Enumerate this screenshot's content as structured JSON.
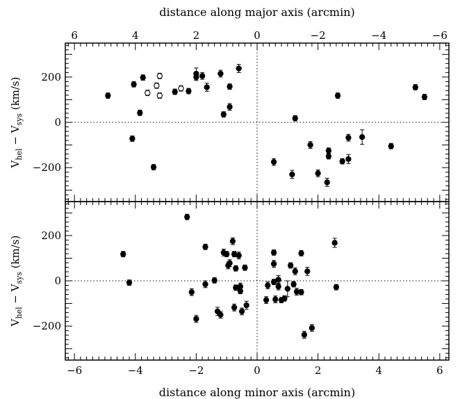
{
  "chart_data": [
    {
      "type": "scatter",
      "xlabel": "distance along major axis (arcmin)",
      "ylabel": "V_hel − V_sys (km/s)",
      "ylabel_parts": {
        "v": "V",
        "hel": "hel",
        "minus": " − ",
        "sys": "sys",
        "unit": " (km/s)"
      },
      "xlim": [
        6.3,
        -6.3
      ],
      "ylim": [
        -350,
        350
      ],
      "xticks": [
        6,
        4,
        2,
        0,
        -2,
        -4,
        -6
      ],
      "xtick_labels": [
        "6",
        "4",
        "2",
        "0",
        "−2",
        "−4",
        "−6"
      ],
      "yticks": [
        -200,
        0,
        200
      ],
      "ytick_labels": [
        "−200",
        "0",
        "200"
      ],
      "reference_lines": {
        "x": 0,
        "y": 0,
        "style": "dotted"
      },
      "series": [
        {
          "marker": "filled-circle",
          "points": [
            {
              "x": 4.9,
              "y": 118,
              "err": 12
            },
            {
              "x": 4.05,
              "y": 168,
              "err": 12
            },
            {
              "x": 3.85,
              "y": 42,
              "err": 12
            },
            {
              "x": 3.75,
              "y": 198,
              "err": 12
            },
            {
              "x": 4.1,
              "y": -72,
              "err": 12
            },
            {
              "x": 3.4,
              "y": -198,
              "err": 12
            },
            {
              "x": 2.7,
              "y": 135,
              "err": 12
            },
            {
              "x": 2.25,
              "y": 138,
              "err": 12
            },
            {
              "x": 2.0,
              "y": 215,
              "err": 25
            },
            {
              "x": 2.0,
              "y": 200,
              "err": 15
            },
            {
              "x": 1.8,
              "y": 205,
              "err": 15
            },
            {
              "x": 1.65,
              "y": 155,
              "err": 18
            },
            {
              "x": 1.2,
              "y": 215,
              "err": 15
            },
            {
              "x": 1.1,
              "y": 35,
              "err": 12
            },
            {
              "x": 0.9,
              "y": 158,
              "err": 12
            },
            {
              "x": 0.9,
              "y": 68,
              "err": 15
            },
            {
              "x": 0.6,
              "y": 238,
              "err": 18
            },
            {
              "x": -0.55,
              "y": -175,
              "err": 15
            },
            {
              "x": -1.15,
              "y": -230,
              "err": 18
            },
            {
              "x": -1.25,
              "y": 18,
              "err": 12
            },
            {
              "x": -1.75,
              "y": -100,
              "err": 15
            },
            {
              "x": -2.0,
              "y": -225,
              "err": 15
            },
            {
              "x": -2.3,
              "y": -265,
              "err": 18
            },
            {
              "x": -2.35,
              "y": -125,
              "err": 12
            },
            {
              "x": -2.35,
              "y": -150,
              "err": 12
            },
            {
              "x": -2.65,
              "y": 118,
              "err": 12
            },
            {
              "x": -2.8,
              "y": -172,
              "err": 12
            },
            {
              "x": -3.0,
              "y": -162,
              "err": 20
            },
            {
              "x": -3.0,
              "y": -68,
              "err": 15
            },
            {
              "x": -3.45,
              "y": -65,
              "err": 32
            },
            {
              "x": -4.4,
              "y": -105,
              "err": 12
            },
            {
              "x": -5.2,
              "y": 155,
              "err": 12
            },
            {
              "x": -5.5,
              "y": 112,
              "err": 12
            }
          ]
        },
        {
          "marker": "open-circle",
          "points": [
            {
              "x": 3.6,
              "y": 130,
              "err": 12
            },
            {
              "x": 3.3,
              "y": 162,
              "err": 12
            },
            {
              "x": 3.2,
              "y": 205,
              "err": 12
            },
            {
              "x": 3.2,
              "y": 118,
              "err": 12
            },
            {
              "x": 2.5,
              "y": 150,
              "err": 12
            }
          ]
        }
      ]
    },
    {
      "type": "scatter",
      "xlabel": "distance along minor axis (arcmin)",
      "ylabel": "V_hel − V_sys (km/s)",
      "ylabel_parts": {
        "v": "V",
        "hel": "hel",
        "minus": " − ",
        "sys": "sys",
        "unit": " (km/s)"
      },
      "xlim": [
        -6.3,
        6.3
      ],
      "ylim": [
        -350,
        350
      ],
      "xticks": [
        -6,
        -4,
        -2,
        0,
        2,
        4,
        6
      ],
      "xtick_labels": [
        "−6",
        "−4",
        "−2",
        "0",
        "2",
        "4",
        "6"
      ],
      "yticks": [
        -200,
        0,
        200
      ],
      "ytick_labels": [
        "−200",
        "0",
        "200"
      ],
      "reference_lines": {
        "x": 0,
        "y": 0,
        "style": "dotted"
      },
      "series": [
        {
          "marker": "filled-circle",
          "points": [
            {
              "x": -4.4,
              "y": 118,
              "err": 12
            },
            {
              "x": -4.2,
              "y": -8,
              "err": 12
            },
            {
              "x": -2.3,
              "y": 282,
              "err": 12
            },
            {
              "x": -2.15,
              "y": -50,
              "err": 15
            },
            {
              "x": -2.0,
              "y": -168,
              "err": 15
            },
            {
              "x": -1.7,
              "y": 150,
              "err": 12
            },
            {
              "x": -1.7,
              "y": -15,
              "err": 15
            },
            {
              "x": -1.4,
              "y": 2,
              "err": 12
            },
            {
              "x": -1.3,
              "y": -135,
              "err": 18
            },
            {
              "x": -1.2,
              "y": -150,
              "err": 15
            },
            {
              "x": -1.1,
              "y": 125,
              "err": 15
            },
            {
              "x": -1.0,
              "y": 118,
              "err": 12
            },
            {
              "x": -0.95,
              "y": 68,
              "err": 15
            },
            {
              "x": -0.9,
              "y": 78,
              "err": 15
            },
            {
              "x": -0.8,
              "y": 175,
              "err": 15
            },
            {
              "x": -0.75,
              "y": -118,
              "err": 15
            },
            {
              "x": -0.75,
              "y": 118,
              "err": 12
            },
            {
              "x": -0.7,
              "y": 55,
              "err": 12
            },
            {
              "x": -0.7,
              "y": -30,
              "err": 12
            },
            {
              "x": -0.6,
              "y": 112,
              "err": 15
            },
            {
              "x": -0.55,
              "y": -25,
              "err": 15
            },
            {
              "x": -0.55,
              "y": -45,
              "err": 12
            },
            {
              "x": -0.5,
              "y": -135,
              "err": 15
            },
            {
              "x": -0.4,
              "y": 58,
              "err": 12
            },
            {
              "x": -0.35,
              "y": -108,
              "err": 18
            },
            {
              "x": 0.3,
              "y": -85,
              "err": 15
            },
            {
              "x": 0.35,
              "y": -20,
              "err": 15
            },
            {
              "x": 0.55,
              "y": 125,
              "err": 12
            },
            {
              "x": 0.55,
              "y": 75,
              "err": 15
            },
            {
              "x": 0.55,
              "y": -5,
              "err": 12
            },
            {
              "x": 0.6,
              "y": -82,
              "err": 15
            },
            {
              "x": 0.7,
              "y": 5,
              "err": 18
            },
            {
              "x": 0.7,
              "y": -25,
              "err": 15
            },
            {
              "x": 0.8,
              "y": -85,
              "err": 12
            },
            {
              "x": 0.9,
              "y": -78,
              "err": 12
            },
            {
              "x": 1.0,
              "y": -35,
              "err": 35
            },
            {
              "x": 1.1,
              "y": 68,
              "err": 12
            },
            {
              "x": 1.2,
              "y": -15,
              "err": 12
            },
            {
              "x": 1.25,
              "y": 42,
              "err": 15
            },
            {
              "x": 1.3,
              "y": -48,
              "err": 15
            },
            {
              "x": 1.45,
              "y": 122,
              "err": 12
            },
            {
              "x": 1.45,
              "y": -50,
              "err": 12
            },
            {
              "x": 1.55,
              "y": -238,
              "err": 15
            },
            {
              "x": 1.65,
              "y": 42,
              "err": 18
            },
            {
              "x": 1.8,
              "y": -208,
              "err": 15
            },
            {
              "x": 2.55,
              "y": 168,
              "err": 20
            },
            {
              "x": 2.6,
              "y": -28,
              "err": 12
            }
          ]
        }
      ]
    }
  ]
}
